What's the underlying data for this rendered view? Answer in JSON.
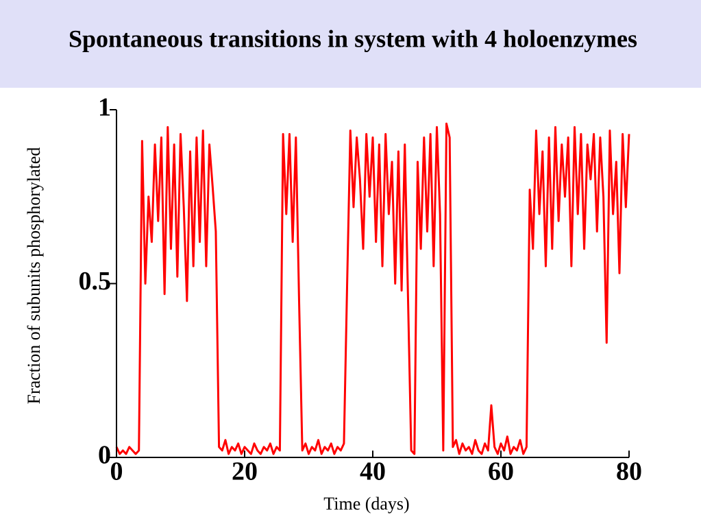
{
  "chart_data": {
    "type": "line",
    "title": "Spontaneous transitions in system with 4 holoenzymes",
    "x_label": "Time (days)",
    "y_label": "Fraction of subunits phosphorylated",
    "xlim": [
      0,
      80
    ],
    "xticks": [
      0,
      20,
      40,
      60,
      80
    ],
    "ylim": [
      0,
      1
    ],
    "yticks": [
      0,
      0.5,
      1
    ],
    "x": [
      0,
      0.5,
      1,
      1.5,
      2,
      2.5,
      3,
      3.5,
      4,
      4.5,
      5,
      5.5,
      6,
      6.5,
      7,
      7.5,
      8,
      8.5,
      9,
      9.5,
      10,
      10.5,
      11,
      11.5,
      12,
      12.5,
      13,
      13.5,
      14,
      14.5,
      15,
      15.5,
      16,
      16.5,
      17,
      17.5,
      18,
      18.5,
      19,
      19.5,
      20,
      20.5,
      21,
      21.5,
      22,
      22.5,
      23,
      23.5,
      24,
      24.5,
      25,
      25.5,
      26,
      26.5,
      27,
      27.5,
      28,
      28.5,
      29,
      29.5,
      30,
      30.5,
      31,
      31.5,
      32,
      32.5,
      33,
      33.5,
      34,
      34.5,
      35,
      35.5,
      36,
      36.5,
      37,
      37.5,
      38,
      38.5,
      39,
      39.5,
      40,
      40.5,
      41,
      41.5,
      42,
      42.5,
      43,
      43.5,
      44,
      44.5,
      45,
      45.5,
      46,
      46.5,
      47,
      47.5,
      48,
      48.5,
      49,
      49.5,
      50,
      50.5,
      51,
      51.5,
      52,
      52.5,
      53,
      53.5,
      54,
      54.5,
      55,
      55.5,
      56,
      56.5,
      57,
      57.5,
      58,
      58.5,
      59,
      59.5,
      60,
      60.5,
      61,
      61.5,
      62,
      62.5,
      63,
      63.5,
      64,
      64.5,
      65,
      65.5,
      66,
      66.5,
      67,
      67.5,
      68,
      68.5,
      69,
      69.5,
      70,
      70.5,
      71,
      71.5,
      72,
      72.5,
      73,
      73.5,
      74,
      74.5,
      75,
      75.5,
      76,
      76.5,
      77,
      77.5,
      78,
      78.5,
      79,
      79.5,
      80
    ],
    "series": [
      {
        "color": "#ff0000",
        "values": [
          0.03,
          0.01,
          0.02,
          0.01,
          0.03,
          0.02,
          0.01,
          0.02,
          0.91,
          0.5,
          0.75,
          0.62,
          0.9,
          0.68,
          0.92,
          0.47,
          0.95,
          0.6,
          0.9,
          0.52,
          0.93,
          0.72,
          0.45,
          0.88,
          0.55,
          0.92,
          0.62,
          0.94,
          0.55,
          0.9,
          0.78,
          0.65,
          0.03,
          0.02,
          0.05,
          0.01,
          0.03,
          0.02,
          0.04,
          0.01,
          0.03,
          0.02,
          0.01,
          0.04,
          0.02,
          0.01,
          0.03,
          0.02,
          0.04,
          0.01,
          0.03,
          0.02,
          0.93,
          0.7,
          0.93,
          0.62,
          0.92,
          0.45,
          0.02,
          0.04,
          0.01,
          0.03,
          0.02,
          0.05,
          0.01,
          0.03,
          0.02,
          0.04,
          0.01,
          0.03,
          0.02,
          0.04,
          0.5,
          0.94,
          0.72,
          0.92,
          0.8,
          0.6,
          0.93,
          0.75,
          0.92,
          0.62,
          0.9,
          0.55,
          0.93,
          0.7,
          0.85,
          0.5,
          0.88,
          0.48,
          0.9,
          0.46,
          0.02,
          0.01,
          0.85,
          0.6,
          0.92,
          0.65,
          0.93,
          0.55,
          0.95,
          0.7,
          0.02,
          0.96,
          0.92,
          0.03,
          0.05,
          0.01,
          0.04,
          0.02,
          0.03,
          0.01,
          0.05,
          0.02,
          0.01,
          0.04,
          0.02,
          0.15,
          0.03,
          0.01,
          0.04,
          0.02,
          0.06,
          0.01,
          0.03,
          0.02,
          0.05,
          0.01,
          0.03,
          0.77,
          0.6,
          0.94,
          0.7,
          0.88,
          0.55,
          0.92,
          0.6,
          0.95,
          0.68,
          0.9,
          0.75,
          0.92,
          0.55,
          0.95,
          0.7,
          0.93,
          0.6,
          0.9,
          0.8,
          0.93,
          0.65,
          0.92,
          0.75,
          0.33,
          0.94,
          0.7,
          0.85,
          0.53,
          0.93,
          0.72,
          0.93
        ]
      }
    ]
  }
}
